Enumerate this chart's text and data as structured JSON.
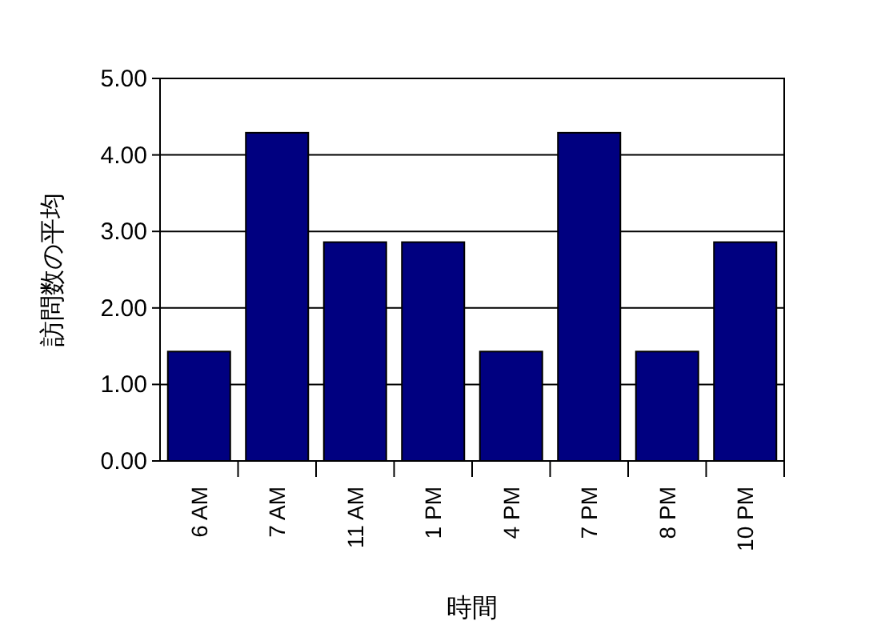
{
  "chart_data": {
    "type": "bar",
    "xlabel": "時間",
    "ylabel": "訪問数の平均",
    "categories": [
      "6 AM",
      "7 AM",
      "11 AM",
      "1 PM",
      "4 PM",
      "7 PM",
      "8 PM",
      "10 PM"
    ],
    "values": [
      1.43,
      4.29,
      2.86,
      2.86,
      1.43,
      4.29,
      1.43,
      2.86
    ],
    "color": "#000080",
    "ylim": [
      0,
      5
    ],
    "yticks": [
      {
        "value": 0,
        "label": "0.00"
      },
      {
        "value": 1,
        "label": "1.00"
      },
      {
        "value": 2,
        "label": "2.00"
      },
      {
        "value": 3,
        "label": "3.00"
      },
      {
        "value": 4,
        "label": "4.00"
      },
      {
        "value": 5,
        "label": "5.00"
      }
    ],
    "grid": "y"
  }
}
